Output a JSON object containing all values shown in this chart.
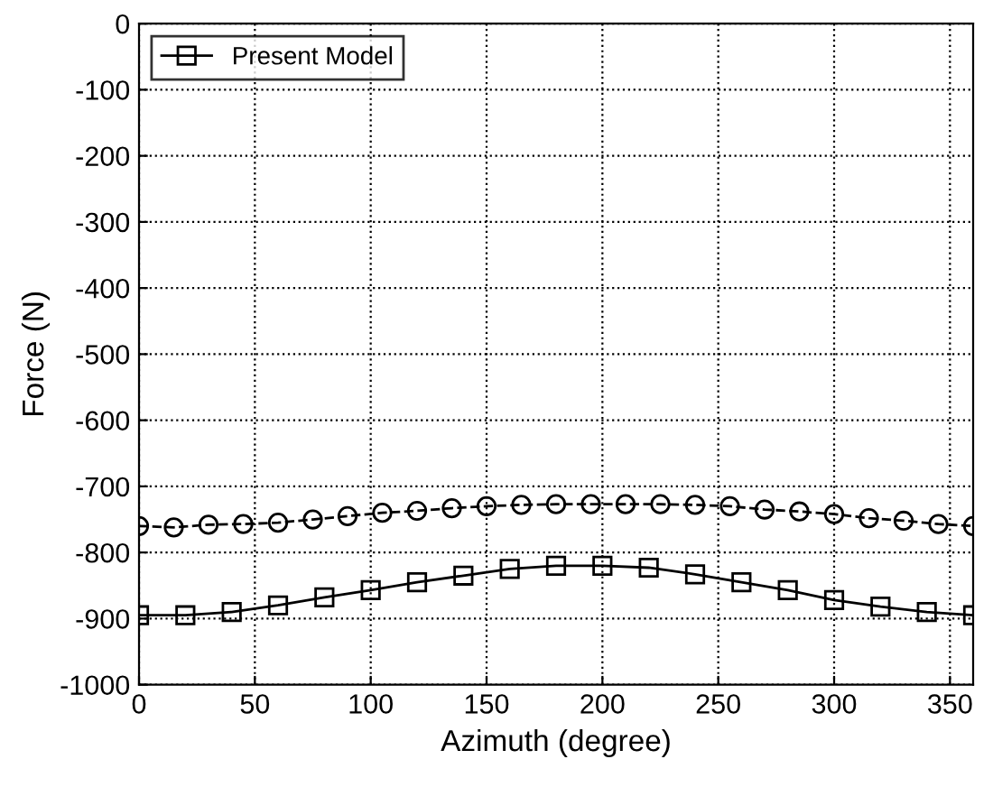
{
  "chart_data": {
    "type": "line",
    "xlabel": "Azimuth (degree)",
    "ylabel": "Force (N)",
    "xlim": [
      0,
      360
    ],
    "ylim": [
      -1000,
      0
    ],
    "xticks": [
      0,
      50,
      100,
      150,
      200,
      250,
      300,
      350
    ],
    "yticks": [
      -1000,
      -900,
      -800,
      -700,
      -600,
      -500,
      -400,
      -300,
      -200,
      -100,
      0
    ],
    "grid": true,
    "legend": "top left",
    "series": [
      {
        "color": "#000000",
        "marker": "circle",
        "line_style": "dashed",
        "x": [
          0,
          15,
          30,
          45,
          60,
          75,
          90,
          105,
          120,
          135,
          150,
          165,
          180,
          195,
          210,
          225,
          240,
          255,
          270,
          285,
          300,
          315,
          330,
          345,
          360
        ],
        "values": [
          -760,
          -762,
          -758,
          -757,
          -755,
          -750,
          -745,
          -740,
          -737,
          -733,
          -730,
          -728,
          -727,
          -727,
          -727,
          -727,
          -728,
          -730,
          -735,
          -738,
          -742,
          -748,
          -752,
          -757,
          -760
        ]
      },
      {
        "name": "Present Model",
        "color": "#000000",
        "marker": "square",
        "line_style": "solid",
        "x": [
          0,
          20,
          40,
          60,
          80,
          100,
          120,
          140,
          160,
          180,
          200,
          220,
          240,
          260,
          280,
          300,
          320,
          340,
          360
        ],
        "values": [
          -895,
          -895,
          -890,
          -880,
          -868,
          -857,
          -845,
          -835,
          -825,
          -820,
          -820,
          -823,
          -833,
          -845,
          -857,
          -872,
          -882,
          -890,
          -895
        ]
      }
    ]
  }
}
